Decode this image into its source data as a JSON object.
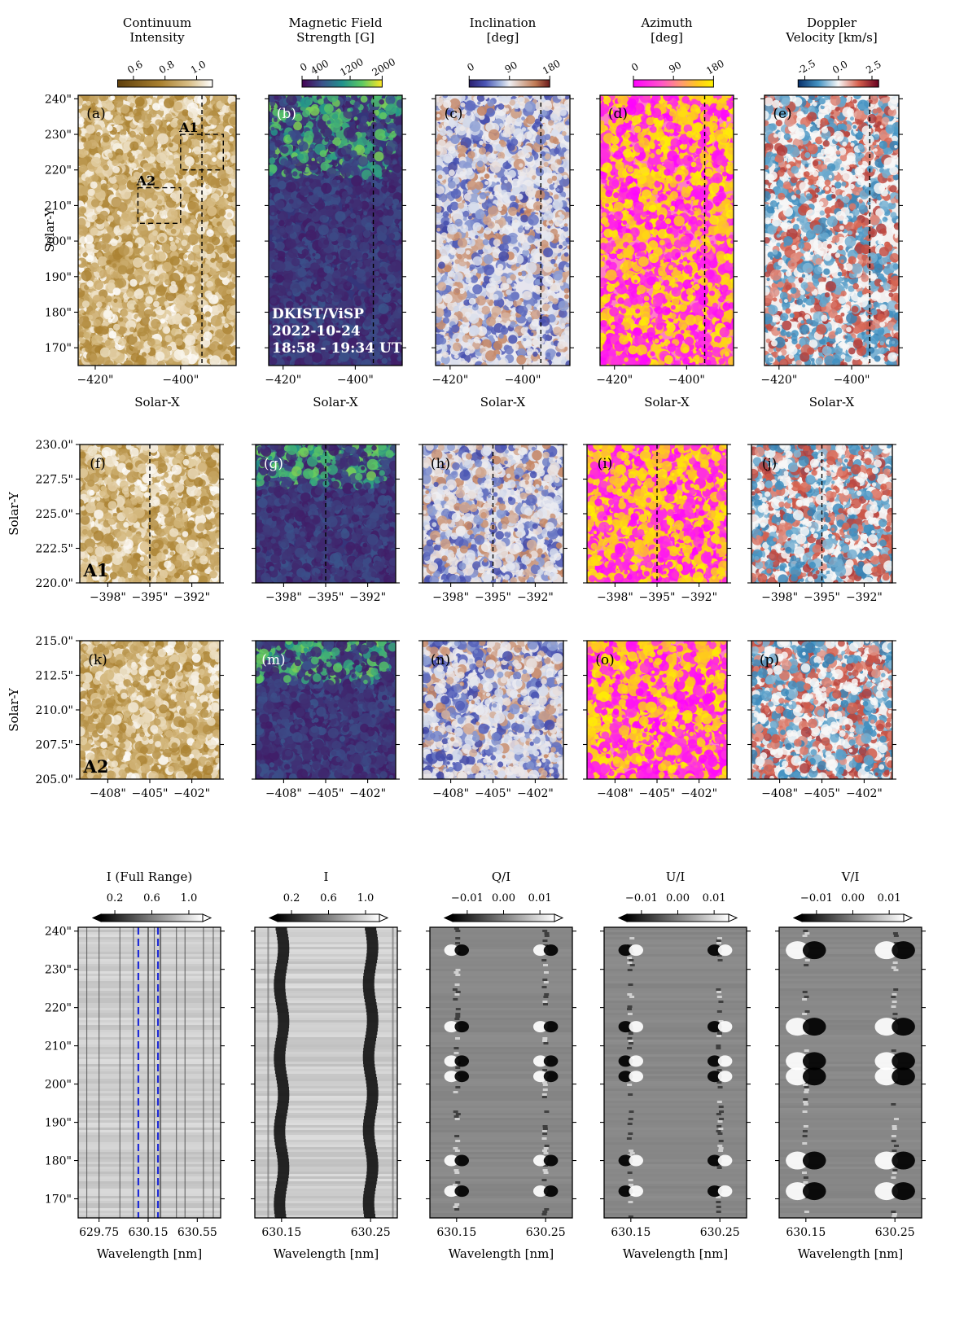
{
  "chart_data": {
    "type": "heatmap",
    "figure": "DKIST/ViSP multi-panel inversion maps and Stokes spectra",
    "observation": {
      "instrument": "DKIST/ViSP",
      "date": "2022-10-24",
      "time": "18:58 - 19:34 UT"
    },
    "colorbars": [
      {
        "title": [
          "Continuum",
          "Intensity"
        ],
        "ticks": [
          "0.6",
          "0.8",
          "1.0"
        ],
        "range": [
          0.5,
          1.1
        ],
        "cmap": "brown-white"
      },
      {
        "title": [
          "Magnetic Field",
          "Strength [G]"
        ],
        "ticks": [
          "0",
          "400",
          "1200",
          "2000"
        ],
        "range": [
          0,
          2000
        ],
        "cmap": "viridis"
      },
      {
        "title": [
          "Inclination",
          "[deg]"
        ],
        "ticks": [
          "0",
          "90",
          "180"
        ],
        "range": [
          0,
          180
        ],
        "cmap": "brown-white-blue"
      },
      {
        "title": [
          "Azimuth",
          "[deg]"
        ],
        "ticks": [
          "0",
          "90",
          "180"
        ],
        "range": [
          0,
          180
        ],
        "cmap": "magenta-yellow"
      },
      {
        "title": [
          "Doppler",
          "Velocity [km/s]"
        ],
        "ticks": [
          "-2.5",
          "0.0",
          "2.5"
        ],
        "range": [
          -3,
          3
        ],
        "cmap": "blue-white-red"
      }
    ],
    "row1": {
      "panels": [
        "(a)",
        "(b)",
        "(c)",
        "(d)",
        "(e)"
      ],
      "xlabel": "Solar-X",
      "ylabel": "Solar-Y",
      "xticks": [
        -420,
        -400
      ],
      "xtick_labels": [
        "−420\"",
        "−400\""
      ],
      "xrange": [
        -424,
        -387
      ],
      "yticks": [
        240,
        230,
        220,
        210,
        200,
        190,
        180,
        170
      ],
      "ytick_labels": [
        "240\"",
        "230\"",
        "220\"",
        "210\"",
        "200\"",
        "190\"",
        "180\"",
        "170\""
      ],
      "yrange": [
        165,
        241
      ],
      "dashed_x": -395,
      "boxes": [
        {
          "label": "A1",
          "x": [
            -400,
            -390
          ],
          "y": [
            220,
            230
          ]
        },
        {
          "label": "A2",
          "x": [
            -410,
            -400
          ],
          "y": [
            205,
            215
          ]
        }
      ],
      "annotation": [
        "DKIST/ViSP",
        "2022-10-24",
        "18:58 - 19:34 UT"
      ]
    },
    "row2": {
      "panels": [
        "(f)",
        "(g)",
        "(h)",
        "(i)",
        "(j)"
      ],
      "region": "A1",
      "xticks": [
        -398,
        -395,
        -392
      ],
      "xtick_labels": [
        "−398\"",
        "−395\"",
        "−392\""
      ],
      "xrange": [
        -400,
        -390
      ],
      "yticks": [
        230.0,
        227.5,
        225.0,
        222.5,
        220.0
      ],
      "ytick_labels": [
        "230.0\"",
        "227.5\"",
        "225.0\"",
        "222.5\"",
        "220.0\""
      ],
      "yrange": [
        220,
        230
      ],
      "ylabel": "Solar-Y",
      "dashed_x": -395
    },
    "row3": {
      "panels": [
        "(k)",
        "(m)",
        "(n)",
        "(o)",
        "(p)"
      ],
      "region": "A2",
      "xticks": [
        -408,
        -405,
        -402
      ],
      "xtick_labels": [
        "−408\"",
        "−405\"",
        "−402\""
      ],
      "xrange": [
        -410,
        -400
      ],
      "yticks": [
        215.0,
        212.5,
        210.0,
        207.5,
        205.0
      ],
      "ytick_labels": [
        "215.0\"",
        "212.5\"",
        "210.0\"",
        "207.5\"",
        "205.0\""
      ],
      "yrange": [
        205,
        215
      ],
      "ylabel": "Solar-Y"
    },
    "row4": {
      "xlabel": "Wavelength [nm]",
      "yticks": [
        240,
        230,
        220,
        210,
        200,
        190,
        180,
        170
      ],
      "ytick_labels": [
        "240\"",
        "230\"",
        "220\"",
        "210\"",
        "200\"",
        "190\"",
        "180\"",
        "170\""
      ],
      "yrange": [
        165,
        241
      ],
      "panels": [
        {
          "title": "I (Full Range)",
          "cbar_ticks": [
            "0.2",
            "0.6",
            "1.0"
          ],
          "cbar_range": [
            0.05,
            1.15
          ],
          "xticks": [
            629.75,
            630.15,
            630.55
          ],
          "xtick_labels": [
            "629.75",
            "630.15",
            "630.55"
          ],
          "xrange": [
            629.58,
            630.74
          ],
          "blue_dashed": [
            630.07,
            630.23
          ]
        },
        {
          "title": "I",
          "cbar_ticks": [
            "0.2",
            "0.6",
            "1.0"
          ],
          "cbar_range": [
            0.05,
            1.15
          ],
          "xticks": [
            630.15,
            630.25
          ],
          "xtick_labels": [
            "630.15",
            "630.25"
          ],
          "xrange": [
            630.12,
            630.28
          ]
        },
        {
          "title": "Q/I",
          "cbar_ticks": [
            "−0.01",
            "0.00",
            "0.01"
          ],
          "cbar_range": [
            -0.014,
            0.014
          ],
          "xticks": [
            630.15,
            630.25
          ],
          "xtick_labels": [
            "630.15",
            "630.25"
          ],
          "xrange": [
            630.12,
            630.28
          ]
        },
        {
          "title": "U/I",
          "cbar_ticks": [
            "−0.01",
            "0.00",
            "0.01"
          ],
          "cbar_range": [
            -0.014,
            0.014
          ],
          "xticks": [
            630.15,
            630.25
          ],
          "xtick_labels": [
            "630.15",
            "630.25"
          ],
          "xrange": [
            630.12,
            630.28
          ]
        },
        {
          "title": "V/I",
          "cbar_ticks": [
            "−0.01",
            "0.00",
            "0.01"
          ],
          "cbar_range": [
            -0.014,
            0.014
          ],
          "xticks": [
            630.15,
            630.25
          ],
          "xtick_labels": [
            "630.15",
            "630.25"
          ],
          "xrange": [
            630.12,
            630.28
          ]
        }
      ],
      "spectral_lines_nm": [
        630.15,
        630.25
      ],
      "polarization_signal_rows": [
        235,
        215,
        206,
        202,
        180,
        172
      ]
    }
  }
}
